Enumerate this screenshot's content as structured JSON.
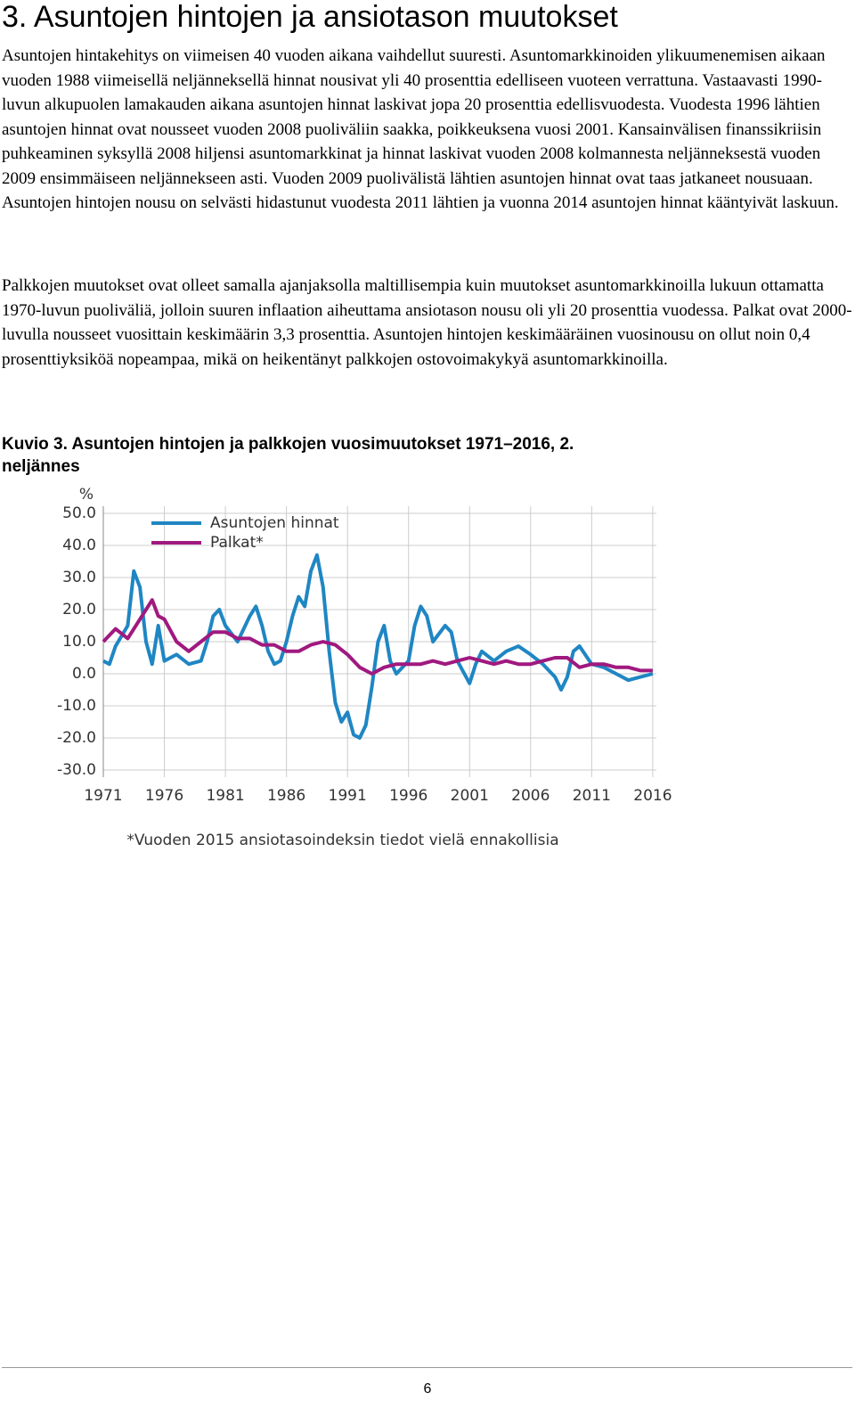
{
  "header": {
    "title": "3. Asuntojen hintojen ja ansiotason muutokset"
  },
  "paragraphs": [
    "Asuntojen hintakehitys on viimeisen 40 vuoden aikana vaihdellut suuresti. Asuntomarkkinoiden ylikuumenemisen aikaan vuoden 1988 viimeisellä neljänneksellä hinnat nousivat yli 40 prosenttia edelliseen vuoteen verrattuna. Vastaavasti 1990-luvun alkupuolen lamakauden aikana asuntojen hinnat laskivat jopa 20 prosenttia edellisvuodesta. Vuodesta 1996 lähtien asuntojen hinnat ovat nousseet vuoden 2008 puoliväliin saakka, poikkeuksena vuosi 2001. Kansainvälisen finanssikriisin puhkeaminen syksyllä 2008 hiljensi asuntomarkkinat ja hinnat laskivat vuoden 2008 kolmannesta neljänneksestä vuoden 2009 ensimmäiseen neljännekseen asti. Vuoden 2009 puolivälistä lähtien asuntojen hinnat ovat taas jatkaneet nousuaan. Asuntojen hintojen nousu on selvästi hidastunut vuodesta 2011 lähtien ja vuonna 2014 asuntojen hinnat kääntyivät laskuun.",
    "Palkkojen muutokset ovat olleet samalla ajanjaksolla maltillisempia kuin muutokset asuntomarkkinoilla lukuun ottamatta 1970-luvun puoliväliä, jolloin suuren inflaation aiheuttama ansiotason nousu oli yli 20 prosenttia vuodessa. Palkat ovat 2000-luvulla nousseet vuosittain keskimäärin 3,3 prosenttia. Asuntojen hintojen keskimääräinen vuosinousu on ollut noin 0,4 prosenttiyksiköä nopeampaa, mikä on heikentänyt palkkojen ostovoimakykyä asuntomarkkinoilla."
  ],
  "figure": {
    "caption": "Kuvio 3. Asuntojen hintojen ja palkkojen vuosimuutokset 1971–2016, 2. neljännes"
  },
  "chart_data": {
    "type": "line",
    "y_label": "%",
    "grid": true,
    "legend": "upper-left",
    "note": "*Vuoden 2015 ansiotasoindeksin tiedot vielä ennakollisia",
    "xlim": [
      1971,
      2016.3
    ],
    "ylim": [
      -30,
      50
    ],
    "xticks": [
      1971,
      1976,
      1981,
      1986,
      1991,
      1996,
      2001,
      2006,
      2011,
      2016
    ],
    "yticks": [
      {
        "value": 50,
        "label": "50.0"
      },
      {
        "value": 40,
        "label": "40.0"
      },
      {
        "value": 30,
        "label": "30.0"
      },
      {
        "value": 20,
        "label": "20.0"
      },
      {
        "value": 10,
        "label": "10.0"
      },
      {
        "value": 0,
        "label": "0.0"
      },
      {
        "value": -10,
        "label": "-10.0"
      },
      {
        "value": -20,
        "label": "-20.0"
      },
      {
        "value": -30,
        "label": "-30.0"
      }
    ],
    "series": [
      {
        "name": "Asuntojen hinnat",
        "color": "#1f86c3",
        "x": [
          1971,
          1971.5,
          1972,
          1973,
          1973.5,
          1974,
          1974.5,
          1975,
          1975.5,
          1976,
          1977,
          1978,
          1979,
          1979.5,
          1980,
          1980.5,
          1981,
          1982,
          1983,
          1983.5,
          1984,
          1984.5,
          1985,
          1985.5,
          1986,
          1986.5,
          1987,
          1987.5,
          1988,
          1988.5,
          1989,
          1989.5,
          1990,
          1990.5,
          1991,
          1991.5,
          1992,
          1992.5,
          1993,
          1993.5,
          1994,
          1994.5,
          1995,
          1996,
          1996.5,
          1997,
          1997.5,
          1998,
          1999,
          1999.5,
          2000,
          2001,
          2001.5,
          2002,
          2003,
          2004,
          2005,
          2006,
          2007,
          2008,
          2008.5,
          2009,
          2009.5,
          2010,
          2011,
          2012,
          2013,
          2014,
          2015,
          2016
        ],
        "values": [
          4,
          3,
          8.6,
          15,
          32,
          27,
          10,
          3,
          15,
          4,
          6,
          3,
          4,
          10,
          18,
          20,
          15,
          10,
          18,
          21,
          15,
          7,
          3,
          4,
          10,
          18,
          24,
          21,
          32,
          37,
          27,
          7,
          -9,
          -15,
          -12,
          -19,
          -20,
          -16,
          -4,
          10,
          15,
          4,
          0,
          4,
          15,
          21,
          18,
          10,
          15,
          13,
          4,
          -3,
          3,
          7,
          4,
          7,
          8.6,
          6,
          3,
          -1,
          -5,
          -1,
          7,
          8.6,
          3,
          2,
          0,
          -2,
          -1,
          0
        ]
      },
      {
        "name": "Palkat*",
        "color": "#a0197f",
        "x": [
          1971,
          1972,
          1973,
          1974,
          1975,
          1975.5,
          1976,
          1977,
          1978,
          1979,
          1980,
          1981,
          1982,
          1983,
          1984,
          1985,
          1986,
          1987,
          1988,
          1989,
          1990,
          1991,
          1992,
          1993,
          1994,
          1995,
          1996,
          1997,
          1998,
          1999,
          2000,
          2001,
          2002,
          2003,
          2004,
          2005,
          2006,
          2007,
          2008,
          2009,
          2010,
          2011,
          2012,
          2013,
          2014,
          2015,
          2016
        ],
        "values": [
          10,
          14,
          11,
          17,
          23,
          18,
          17,
          10,
          7,
          10,
          13,
          13,
          11,
          11,
          9,
          9,
          7,
          7,
          9,
          10,
          9,
          6,
          2,
          0,
          2,
          3,
          3,
          3,
          4,
          3,
          4,
          5,
          4,
          3,
          4,
          3,
          3,
          4,
          5,
          5,
          2,
          3,
          3,
          2,
          2,
          1,
          1
        ]
      }
    ]
  },
  "footer": {
    "page": "6"
  }
}
